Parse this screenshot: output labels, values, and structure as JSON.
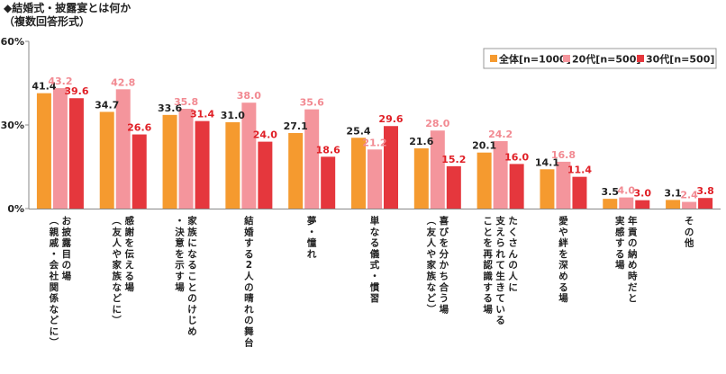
{
  "header": {
    "title": "◆結婚式・披露宴とは何か",
    "subtitle": "（複数回答形式）"
  },
  "colors": {
    "all": "#F59A2F",
    "age20": "#F4959C",
    "age30": "#E5373D",
    "all_label": "#222222",
    "age20_label": "#F28A92",
    "age30_label": "#E01F26"
  },
  "chart_data": {
    "type": "bar",
    "title": "◆結婚式・披露宴とは何か",
    "subtitle": "（複数回答形式）",
    "ylim": [
      0,
      60
    ],
    "yticks": [
      "0%",
      "30%",
      "60%"
    ],
    "grid": false,
    "legend_position": "top-right",
    "categories": [
      {
        "lines": [
          "お披露目の場",
          "（親戚・会社関係などに）"
        ]
      },
      {
        "lines": [
          "感謝を伝える場",
          "（友人や家族などに）"
        ]
      },
      {
        "lines": [
          "家族になることのけじめ",
          "・決意を示す場"
        ]
      },
      {
        "lines": [
          "結婚する2人の晴れの舞台"
        ]
      },
      {
        "lines": [
          "夢・憧れ"
        ]
      },
      {
        "lines": [
          "単なる儀式・慣習"
        ]
      },
      {
        "lines": [
          "喜びを分かち合う場",
          "（友人や家族など）"
        ]
      },
      {
        "lines": [
          "たくさんの人に",
          "支えられて生きている",
          "ことを再認識する場"
        ]
      },
      {
        "lines": [
          "愛や絆を深める場"
        ]
      },
      {
        "lines": [
          "年貢の納め時だと",
          "実感する場"
        ]
      },
      {
        "lines": [
          "その他"
        ]
      }
    ],
    "series": [
      {
        "name": "全体[n=1000]",
        "values": [
          41.4,
          34.7,
          33.6,
          31.0,
          27.1,
          25.4,
          21.6,
          20.1,
          14.1,
          3.5,
          3.1
        ]
      },
      {
        "name": "20代[n=500]",
        "values": [
          43.2,
          42.8,
          35.8,
          38.0,
          35.6,
          21.2,
          28.0,
          24.2,
          16.8,
          4.0,
          2.4
        ]
      },
      {
        "name": "30代[n=500]",
        "values": [
          39.6,
          26.6,
          31.4,
          24.0,
          18.6,
          29.6,
          15.2,
          16.0,
          11.4,
          3.0,
          3.8
        ]
      }
    ]
  }
}
